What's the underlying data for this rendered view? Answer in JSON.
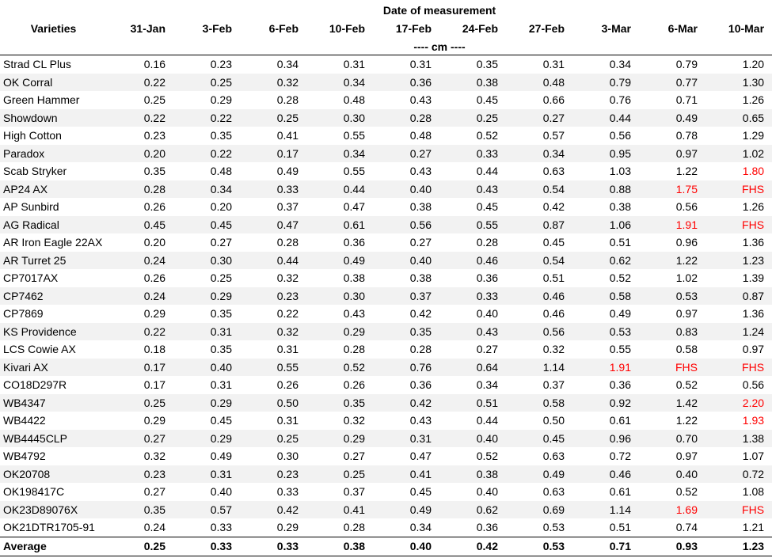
{
  "header": {
    "group_label": "Date of measurement",
    "varieties_label": "Varieties",
    "unit_label": "---- cm ----",
    "dates": [
      "31-Jan",
      "3-Feb",
      "6-Feb",
      "10-Feb",
      "17-Feb",
      "24-Feb",
      "27-Feb",
      "3-Mar",
      "6-Mar",
      "10-Mar"
    ]
  },
  "highlight_color": "#ff0000",
  "rows": [
    {
      "name": "Strad CL Plus",
      "values": [
        "0.16",
        "0.23",
        "0.34",
        "0.31",
        "0.31",
        "0.35",
        "0.31",
        "0.34",
        "0.79",
        "1.20"
      ],
      "red": []
    },
    {
      "name": "OK Corral",
      "values": [
        "0.22",
        "0.25",
        "0.32",
        "0.34",
        "0.36",
        "0.38",
        "0.48",
        "0.79",
        "0.77",
        "1.30"
      ],
      "red": []
    },
    {
      "name": "Green Hammer",
      "values": [
        "0.25",
        "0.29",
        "0.28",
        "0.48",
        "0.43",
        "0.45",
        "0.66",
        "0.76",
        "0.71",
        "1.26"
      ],
      "red": []
    },
    {
      "name": "Showdown",
      "values": [
        "0.22",
        "0.22",
        "0.25",
        "0.30",
        "0.28",
        "0.25",
        "0.27",
        "0.44",
        "0.49",
        "0.65"
      ],
      "red": []
    },
    {
      "name": "High Cotton",
      "values": [
        "0.23",
        "0.35",
        "0.41",
        "0.55",
        "0.48",
        "0.52",
        "0.57",
        "0.56",
        "0.78",
        "1.29"
      ],
      "red": []
    },
    {
      "name": "Paradox",
      "values": [
        "0.20",
        "0.22",
        "0.17",
        "0.34",
        "0.27",
        "0.33",
        "0.34",
        "0.95",
        "0.97",
        "1.02"
      ],
      "red": []
    },
    {
      "name": "Scab Stryker",
      "values": [
        "0.35",
        "0.48",
        "0.49",
        "0.55",
        "0.43",
        "0.44",
        "0.63",
        "1.03",
        "1.22",
        "1.80"
      ],
      "red": [
        9
      ]
    },
    {
      "name": "AP24 AX",
      "values": [
        "0.28",
        "0.34",
        "0.33",
        "0.44",
        "0.40",
        "0.43",
        "0.54",
        "0.88",
        "1.75",
        "FHS"
      ],
      "red": [
        8,
        9
      ]
    },
    {
      "name": "AP Sunbird",
      "values": [
        "0.26",
        "0.20",
        "0.37",
        "0.47",
        "0.38",
        "0.45",
        "0.42",
        "0.38",
        "0.56",
        "1.26"
      ],
      "red": []
    },
    {
      "name": "AG Radical",
      "values": [
        "0.45",
        "0.45",
        "0.47",
        "0.61",
        "0.56",
        "0.55",
        "0.87",
        "1.06",
        "1.91",
        "FHS"
      ],
      "red": [
        8,
        9
      ]
    },
    {
      "name": "AR Iron Eagle 22AX",
      "values": [
        "0.20",
        "0.27",
        "0.28",
        "0.36",
        "0.27",
        "0.28",
        "0.45",
        "0.51",
        "0.96",
        "1.36"
      ],
      "red": []
    },
    {
      "name": "AR Turret 25",
      "values": [
        "0.24",
        "0.30",
        "0.44",
        "0.49",
        "0.40",
        "0.46",
        "0.54",
        "0.62",
        "1.22",
        "1.23"
      ],
      "red": []
    },
    {
      "name": "CP7017AX",
      "values": [
        "0.26",
        "0.25",
        "0.32",
        "0.38",
        "0.38",
        "0.36",
        "0.51",
        "0.52",
        "1.02",
        "1.39"
      ],
      "red": []
    },
    {
      "name": "CP7462",
      "values": [
        "0.24",
        "0.29",
        "0.23",
        "0.30",
        "0.37",
        "0.33",
        "0.46",
        "0.58",
        "0.53",
        "0.87"
      ],
      "red": []
    },
    {
      "name": "CP7869",
      "values": [
        "0.29",
        "0.35",
        "0.22",
        "0.43",
        "0.42",
        "0.40",
        "0.46",
        "0.49",
        "0.97",
        "1.36"
      ],
      "red": []
    },
    {
      "name": "KS Providence",
      "values": [
        "0.22",
        "0.31",
        "0.32",
        "0.29",
        "0.35",
        "0.43",
        "0.56",
        "0.53",
        "0.83",
        "1.24"
      ],
      "red": []
    },
    {
      "name": "LCS Cowie AX",
      "values": [
        "0.18",
        "0.35",
        "0.31",
        "0.28",
        "0.28",
        "0.27",
        "0.32",
        "0.55",
        "0.58",
        "0.97"
      ],
      "red": []
    },
    {
      "name": "Kivari AX",
      "values": [
        "0.17",
        "0.40",
        "0.55",
        "0.52",
        "0.76",
        "0.64",
        "1.14",
        "1.91",
        "FHS",
        "FHS"
      ],
      "red": [
        7,
        8,
        9
      ]
    },
    {
      "name": "CO18D297R",
      "values": [
        "0.17",
        "0.31",
        "0.26",
        "0.26",
        "0.36",
        "0.34",
        "0.37",
        "0.36",
        "0.52",
        "0.56"
      ],
      "red": []
    },
    {
      "name": "WB4347",
      "values": [
        "0.25",
        "0.29",
        "0.50",
        "0.35",
        "0.42",
        "0.51",
        "0.58",
        "0.92",
        "1.42",
        "2.20"
      ],
      "red": [
        9
      ]
    },
    {
      "name": "WB4422",
      "values": [
        "0.29",
        "0.45",
        "0.31",
        "0.32",
        "0.43",
        "0.44",
        "0.50",
        "0.61",
        "1.22",
        "1.93"
      ],
      "red": [
        9
      ]
    },
    {
      "name": "WB4445CLP",
      "values": [
        "0.27",
        "0.29",
        "0.25",
        "0.29",
        "0.31",
        "0.40",
        "0.45",
        "0.96",
        "0.70",
        "1.38"
      ],
      "red": []
    },
    {
      "name": "WB4792",
      "values": [
        "0.32",
        "0.49",
        "0.30",
        "0.27",
        "0.47",
        "0.52",
        "0.63",
        "0.72",
        "0.97",
        "1.07"
      ],
      "red": []
    },
    {
      "name": "OK20708",
      "values": [
        "0.23",
        "0.31",
        "0.23",
        "0.25",
        "0.41",
        "0.38",
        "0.49",
        "0.46",
        "0.40",
        "0.72"
      ],
      "red": []
    },
    {
      "name": "OK198417C",
      "values": [
        "0.27",
        "0.40",
        "0.33",
        "0.37",
        "0.45",
        "0.40",
        "0.63",
        "0.61",
        "0.52",
        "1.08"
      ],
      "red": []
    },
    {
      "name": "OK23D89076X",
      "values": [
        "0.35",
        "0.57",
        "0.42",
        "0.41",
        "0.49",
        "0.62",
        "0.69",
        "1.14",
        "1.69",
        "FHS"
      ],
      "red": [
        8,
        9
      ]
    },
    {
      "name": "OK21DTR1705-91",
      "values": [
        "0.24",
        "0.33",
        "0.29",
        "0.28",
        "0.34",
        "0.36",
        "0.53",
        "0.51",
        "0.74",
        "1.21"
      ],
      "red": []
    }
  ],
  "average": {
    "label": "Average",
    "values": [
      "0.25",
      "0.33",
      "0.33",
      "0.38",
      "0.40",
      "0.42",
      "0.53",
      "0.71",
      "0.93",
      "1.23"
    ]
  }
}
